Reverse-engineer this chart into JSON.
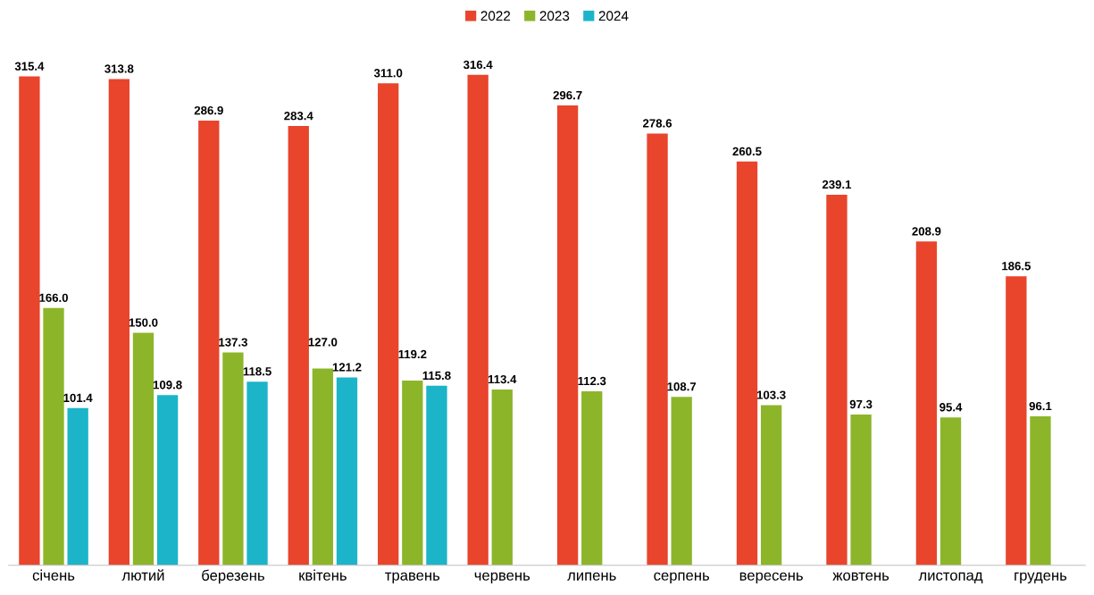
{
  "chart_data": {
    "type": "bar",
    "categories": [
      "січень",
      "лютий",
      "березень",
      "квітень",
      "травень",
      "червень",
      "липень",
      "серпень",
      "вересень",
      "жовтень",
      "листопад",
      "грудень"
    ],
    "series": [
      {
        "name": "2022",
        "color": "#e8452c",
        "values": [
          315.4,
          313.8,
          286.9,
          283.4,
          311.0,
          316.4,
          296.7,
          278.6,
          260.5,
          239.1,
          208.9,
          186.5
        ],
        "value_labels": [
          "315.4",
          "313.8",
          "286.9",
          "283.4",
          "311.0",
          "316.4",
          "296.7",
          "278.6",
          "260.5",
          "239.1",
          "208.9",
          "186.5"
        ]
      },
      {
        "name": "2023",
        "color": "#8db52a",
        "values": [
          166.0,
          150.0,
          137.3,
          127.0,
          119.2,
          113.4,
          112.3,
          108.7,
          103.3,
          97.3,
          95.4,
          96.1
        ],
        "value_labels": [
          "166.0",
          "150.0",
          "137.3",
          "127.0",
          "119.2",
          "113.4",
          "112.3",
          "108.7",
          "103.3",
          "97.3",
          "95.4",
          "96.1"
        ]
      },
      {
        "name": "2024",
        "color": "#1cb4c8",
        "values": [
          101.4,
          109.8,
          118.5,
          121.2,
          115.8,
          null,
          null,
          null,
          null,
          null,
          null,
          null
        ],
        "value_labels": [
          "101.4",
          "109.8",
          "118.5",
          "121.2",
          "115.8",
          null,
          null,
          null,
          null,
          null,
          null,
          null
        ]
      }
    ],
    "legend": "top",
    "grid": false
  }
}
